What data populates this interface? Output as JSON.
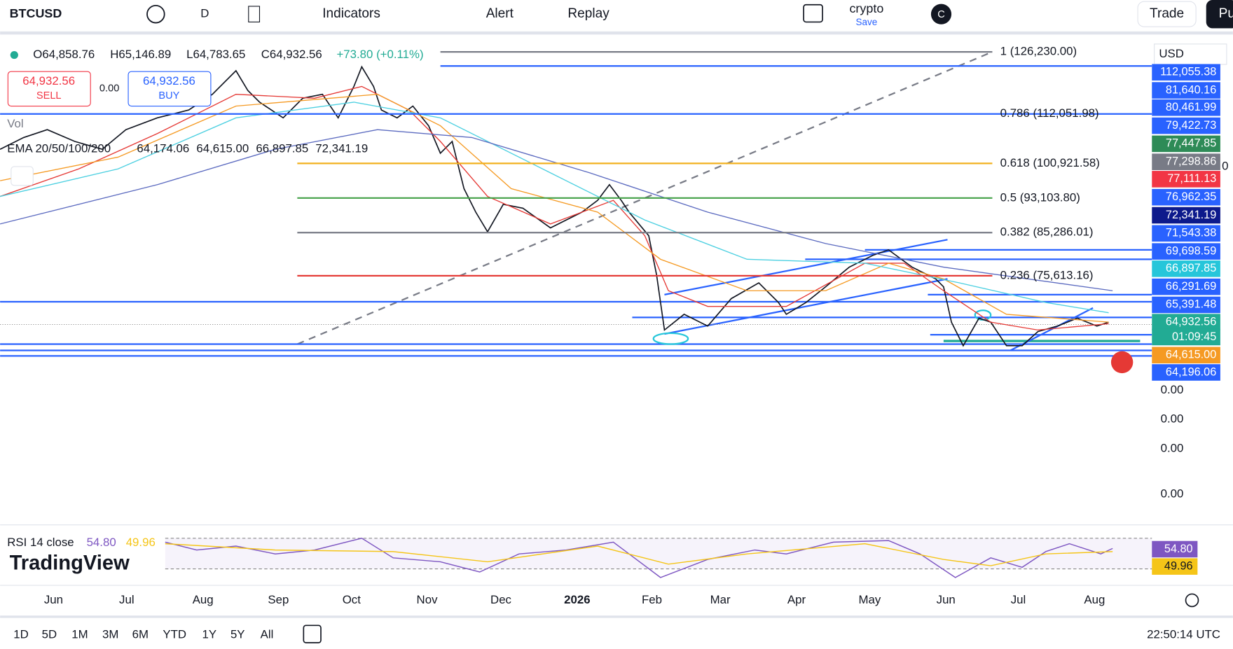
{
  "toolbar": {
    "symbol": "BTCUSD",
    "interval": "D",
    "indicators": "Indicators",
    "alert": "Alert",
    "replay": "Replay",
    "layout_name": "crypto",
    "layout_status": "Save",
    "avatar": "C",
    "trade": "Trade",
    "publish": "Pu"
  },
  "legend": {
    "open": "O64,858.76",
    "high": "H65,146.89",
    "low": "L64,783.65",
    "close": "C64,932.56",
    "change": "+73.80 (+0.11%)"
  },
  "order": {
    "sell_price": "64,932.56",
    "sell": "SELL",
    "spread": "0.00",
    "buy_price": "64,932.56",
    "buy": "BUY"
  },
  "vol": "Vol",
  "ema": {
    "label": "EMA 20/50/100/200",
    "values": [
      {
        "text": "64,174.06",
        "color": "#e53935"
      },
      {
        "text": "64,615.00",
        "color": "#f59a23"
      },
      {
        "text": "66,897.85",
        "color": "#4dd0e1"
      },
      {
        "text": "72,341.19",
        "color": "#1a237e"
      }
    ]
  },
  "fib": [
    {
      "label": "1 (126,230.00)",
      "color": "#787b86"
    },
    {
      "label": "0.786 (112,051.98)",
      "color": "#2962ff"
    },
    {
      "label": "0.618 (100,921.58)",
      "color": "#f2b01e"
    },
    {
      "label": "0.5 (93,103.80)",
      "color": "#43a047"
    },
    {
      "label": "0.382 (85,286.01)",
      "color": "#787b86"
    },
    {
      "label": "0.236 (75,613.16)",
      "color": "#e53935"
    }
  ],
  "price_scale": {
    "currency": "USD",
    "labels": [
      {
        "text": "112,055.38",
        "bg": "#2962ff"
      },
      {
        "text": "81,640.16",
        "bg": "#2962ff"
      },
      {
        "text": "80,461.99",
        "bg": "#2962ff"
      },
      {
        "text": "79,422.73",
        "bg": "#2962ff"
      },
      {
        "text": "77,447.85",
        "bg": "#2e8b57"
      },
      {
        "text": "77,298.86",
        "bg": "#787b86"
      },
      {
        "text": "77,111.13",
        "bg": "#f23645"
      },
      {
        "text": "76,962.35",
        "bg": "#2962ff"
      },
      {
        "text": "72,341.19",
        "bg": "#0d1a8c"
      },
      {
        "text": "71,543.38",
        "bg": "#2962ff"
      },
      {
        "text": "69,698.59",
        "bg": "#2962ff"
      },
      {
        "text": "66,897.85",
        "bg": "#26c6da"
      },
      {
        "text": "66,291.69",
        "bg": "#2962ff"
      },
      {
        "text": "65,391.48",
        "bg": "#2962ff"
      },
      {
        "text": "64,932.56",
        "bg": "#22ab94"
      },
      {
        "text": "01:09:45",
        "bg": "#22ab94"
      },
      {
        "text": "64,615.00",
        "bg": "#f59a23"
      },
      {
        "text": "64,196.06",
        "bg": "#2962ff"
      }
    ],
    "empty_labels": [
      "0.00",
      "0.00",
      "0.00",
      "0.00"
    ],
    "edge_mark": "0"
  },
  "rsi": {
    "label": "RSI 14 close",
    "value": "54.80",
    "ma": "49.96",
    "scale": [
      {
        "text": "54.80",
        "bg": "#7e57c2"
      },
      {
        "text": "49.96",
        "bg": "#f5c518"
      }
    ]
  },
  "watermark": "TradingView",
  "months": [
    "Jun",
    "Jul",
    "Aug",
    "Sep",
    "Oct",
    "Nov",
    "Dec",
    "2026",
    "Feb",
    "Mar",
    "Apr",
    "May",
    "Jun",
    "Jul",
    "Aug"
  ],
  "ranges": [
    "1D",
    "5D",
    "1M",
    "3M",
    "6M",
    "YTD",
    "1Y",
    "5Y",
    "All"
  ],
  "clock": "22:50:14 UTC"
}
